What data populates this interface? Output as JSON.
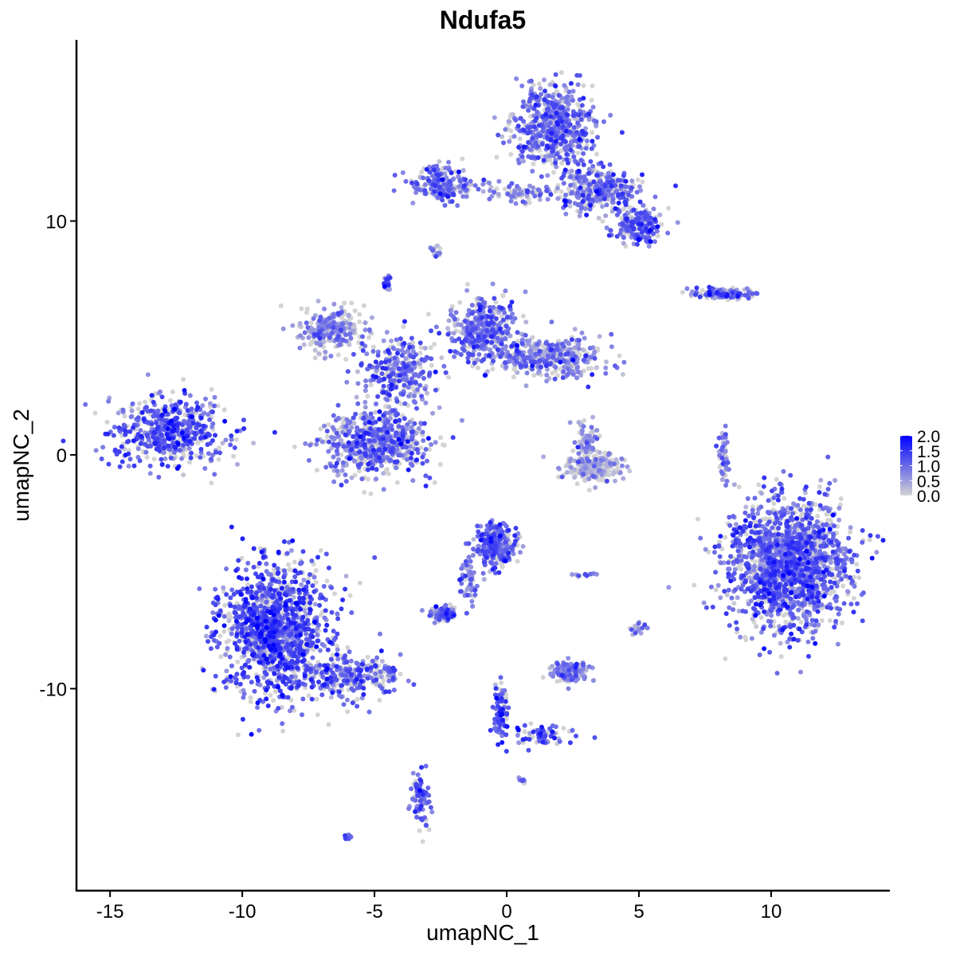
{
  "chart_data": {
    "type": "scatter",
    "title": "Ndufa5",
    "xlabel": "umapNC_1",
    "ylabel": "umapNC_2",
    "xlim": [
      -16.27,
      14.46
    ],
    "ylim": [
      -18.64,
      17.75
    ],
    "xticks": [
      -15,
      -10,
      -5,
      0,
      5,
      10
    ],
    "yticks": [
      -10,
      0,
      10
    ],
    "xtick_labels": [
      "-15",
      "-10",
      "-5",
      "0",
      "5",
      "10"
    ],
    "ytick_labels": [
      "-10",
      "0",
      "10"
    ],
    "grid": false,
    "color_scale": {
      "low": "#D3D3D3",
      "high": "#0000FF",
      "min": 0,
      "max": 2.0,
      "ticks": [
        0,
        0.5,
        1.0,
        1.5,
        2.0
      ],
      "tick_labels": [
        "0.0",
        "0.5",
        "1.0",
        "1.5",
        "2.0"
      ]
    },
    "legend_position": "right",
    "clusters": [
      {
        "x": -12.7,
        "y": 1.05,
        "sx": 1.5,
        "sy": 1.0,
        "n": 550,
        "mean_expr": 1.1
      },
      {
        "x": -8.8,
        "y": -7.5,
        "sx": 1.4,
        "sy": 1.9,
        "n": 1300,
        "mean_expr": 1.2
      },
      {
        "x": -5.8,
        "y": -9.5,
        "sx": 1.2,
        "sy": 0.6,
        "n": 250,
        "mean_expr": 1.0
      },
      {
        "x": -3.3,
        "y": -14.6,
        "sx": 0.25,
        "sy": 0.8,
        "n": 80,
        "mean_expr": 1.1
      },
      {
        "x": -5.0,
        "y": 0.5,
        "sx": 1.3,
        "sy": 0.9,
        "n": 600,
        "mean_expr": 0.9
      },
      {
        "x": -6.6,
        "y": 5.4,
        "sx": 0.8,
        "sy": 0.6,
        "n": 250,
        "mean_expr": 0.6
      },
      {
        "x": -4.0,
        "y": 3.5,
        "sx": 1.0,
        "sy": 1.0,
        "n": 300,
        "mean_expr": 0.9
      },
      {
        "x": -0.9,
        "y": 5.4,
        "sx": 0.8,
        "sy": 0.9,
        "n": 350,
        "mean_expr": 0.9
      },
      {
        "x": 1.5,
        "y": 4.2,
        "sx": 1.4,
        "sy": 0.6,
        "n": 400,
        "mean_expr": 0.7
      },
      {
        "x": 1.8,
        "y": 14.0,
        "sx": 1.0,
        "sy": 1.2,
        "n": 600,
        "mean_expr": 0.9
      },
      {
        "x": -2.5,
        "y": 11.6,
        "sx": 0.8,
        "sy": 0.5,
        "n": 200,
        "mean_expr": 0.9
      },
      {
        "x": 0.3,
        "y": 11.2,
        "sx": 1.3,
        "sy": 0.3,
        "n": 90,
        "mean_expr": 0.6
      },
      {
        "x": 3.5,
        "y": 11.3,
        "sx": 1.0,
        "sy": 0.6,
        "n": 300,
        "mean_expr": 0.9
      },
      {
        "x": 5.0,
        "y": 9.8,
        "sx": 0.6,
        "sy": 0.5,
        "n": 200,
        "mean_expr": 1.0
      },
      {
        "x": 10.6,
        "y": -4.7,
        "sx": 1.5,
        "sy": 1.8,
        "n": 1700,
        "mean_expr": 1.0
      },
      {
        "x": 3.3,
        "y": -0.5,
        "sx": 0.7,
        "sy": 0.4,
        "n": 250,
        "mean_expr": 0.25
      },
      {
        "x": 3.0,
        "y": 0.7,
        "sx": 0.3,
        "sy": 0.6,
        "n": 60,
        "mean_expr": 0.6
      },
      {
        "x": -0.4,
        "y": -3.9,
        "sx": 0.5,
        "sy": 0.6,
        "n": 300,
        "mean_expr": 1.0
      },
      {
        "x": -1.4,
        "y": -5.5,
        "sx": 0.3,
        "sy": 0.8,
        "n": 50,
        "mean_expr": 0.9
      },
      {
        "x": -2.4,
        "y": -6.8,
        "sx": 0.3,
        "sy": 0.2,
        "n": 100,
        "mean_expr": 1.0
      },
      {
        "x": 2.4,
        "y": -9.3,
        "sx": 0.5,
        "sy": 0.3,
        "n": 150,
        "mean_expr": 0.7
      },
      {
        "x": -0.2,
        "y": -11.0,
        "sx": 0.2,
        "sy": 0.9,
        "n": 80,
        "mean_expr": 1.2
      },
      {
        "x": 1.3,
        "y": -12.0,
        "sx": 0.8,
        "sy": 0.3,
        "n": 70,
        "mean_expr": 1.1
      },
      {
        "x": 8.3,
        "y": 6.9,
        "sx": 0.9,
        "sy": 0.15,
        "n": 120,
        "mean_expr": 0.9
      },
      {
        "x": 8.2,
        "y": 0.0,
        "sx": 0.15,
        "sy": 0.8,
        "n": 50,
        "mean_expr": 0.8
      },
      {
        "x": -2.7,
        "y": 8.7,
        "sx": 0.15,
        "sy": 0.2,
        "n": 15,
        "mean_expr": 0.8
      },
      {
        "x": -4.5,
        "y": 7.4,
        "sx": 0.15,
        "sy": 0.2,
        "n": 20,
        "mean_expr": 0.9
      },
      {
        "x": 5.0,
        "y": -7.4,
        "sx": 0.2,
        "sy": 0.2,
        "n": 20,
        "mean_expr": 0.9
      },
      {
        "x": 3.1,
        "y": -5.1,
        "sx": 0.3,
        "sy": 0.1,
        "n": 15,
        "mean_expr": 0.8
      },
      {
        "x": -6.0,
        "y": -16.3,
        "sx": 0.1,
        "sy": 0.1,
        "n": 8,
        "mean_expr": 0.9
      },
      {
        "x": 0.6,
        "y": -13.9,
        "sx": 0.1,
        "sy": 0.1,
        "n": 8,
        "mean_expr": 1.0
      }
    ]
  }
}
